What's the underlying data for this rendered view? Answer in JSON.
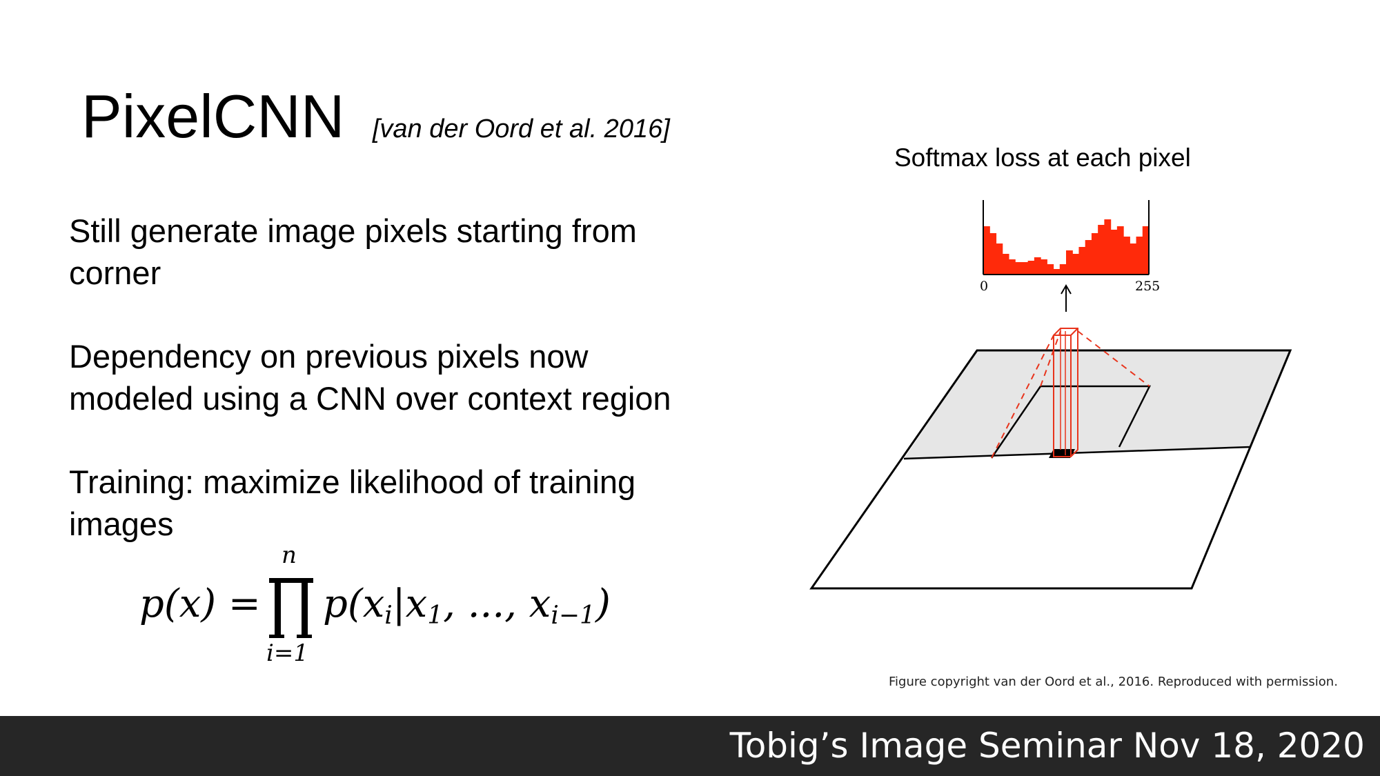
{
  "slide": {
    "title": "PixelCNN",
    "citation": "[van der Oord et al. 2016]",
    "bullets": [
      {
        "line1": "Still generate image pixels starting from",
        "line2": "corner"
      },
      {
        "line1": "Dependency on previous pixels now",
        "line2": "modeled using a CNN over context region"
      },
      {
        "line1": "Training: maximize likelihood of training",
        "line2": "images"
      }
    ],
    "formula": {
      "lhs": "p(x) =",
      "upper_limit": "n",
      "lower_limit": "i=1",
      "rhs_head": "p(x",
      "rhs_sub": "i",
      "rhs_mid": "|x",
      "rhs_sub1": "1",
      "rhs_dots": ", ..., x",
      "rhs_sub2": "i−1",
      "rhs_tail": ")"
    }
  },
  "figure": {
    "title": "Softmax loss at each pixel",
    "axis_min": "0",
    "axis_max": "255",
    "histogram_color": "#ff2a0a",
    "highlight_color": "#e8341c",
    "histogram_levels": [
      0.7,
      0.6,
      0.45,
      0.3,
      0.22,
      0.18,
      0.18,
      0.2,
      0.25,
      0.22,
      0.15,
      0.08,
      0.15,
      0.35,
      0.3,
      0.4,
      0.5,
      0.6,
      0.72,
      0.8,
      0.65,
      0.7,
      0.55,
      0.45,
      0.55,
      0.7
    ],
    "copyright": "Figure copyright van der Oord et al., 2016. Reproduced with permission."
  },
  "footer": {
    "text": "Tobig’s Image Seminar Nov 18, 2020"
  }
}
